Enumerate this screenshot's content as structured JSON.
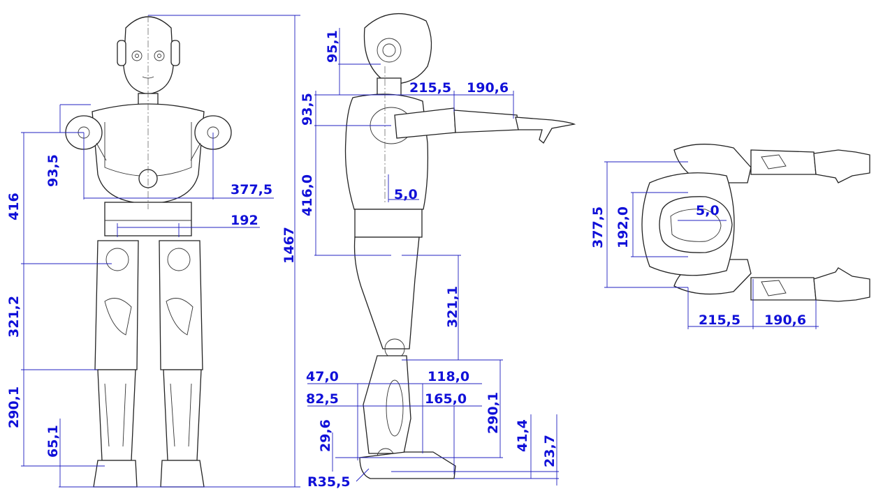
{
  "dimensions": {
    "front": {
      "height_total": "1467",
      "shoulder_to_hip": "416",
      "shoulder_joint": "93,5",
      "shoulder_width": "377,5",
      "hip_width": "192",
      "thigh": "321,2",
      "shin": "290,1",
      "ankle": "65,1"
    },
    "side": {
      "head": "95,1",
      "shoulder_offset": "93,5",
      "upper_arm": "215,5",
      "forearm": "190,6",
      "torso": "416,0",
      "hip_offset": "5,0",
      "thigh": "321,1",
      "shin": "290,1",
      "knee_a": "47,0",
      "knee_b": "118,0",
      "foot_a": "82,5",
      "foot_b": "165,0",
      "ankle_a": "29,6",
      "ankle_b": "41,4",
      "sole": "23,7",
      "heel_radius": "R35,5"
    },
    "top": {
      "shoulder_width": "377,5",
      "hip_width": "192,0",
      "offset": "5,0",
      "upper_arm": "215,5",
      "forearm": "190,6"
    }
  }
}
